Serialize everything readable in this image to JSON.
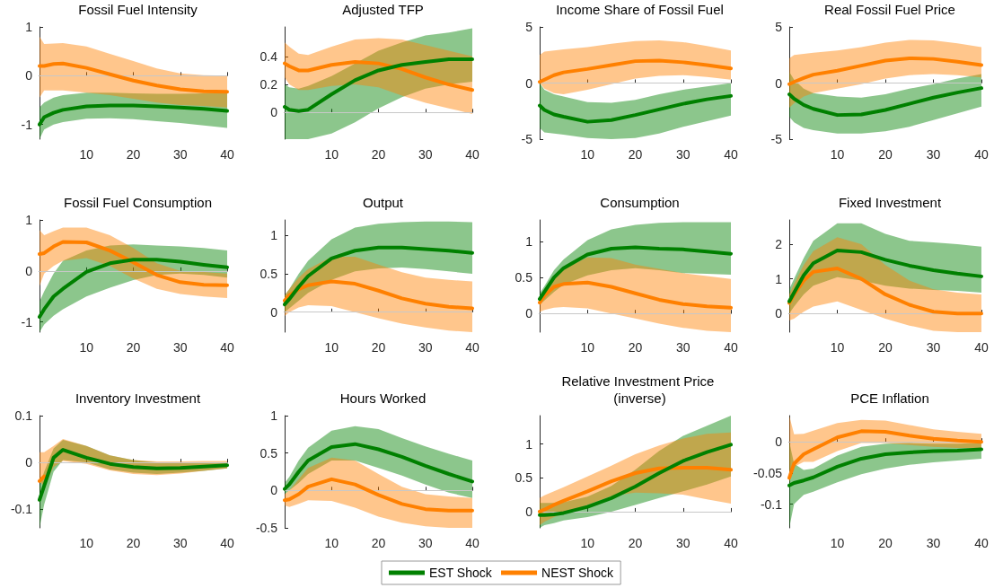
{
  "chart_data": [
    {
      "type": "line",
      "title": "Fossil Fuel Intensity",
      "x": [
        0,
        1,
        3,
        5,
        10,
        15,
        20,
        25,
        30,
        35,
        40
      ],
      "xlim": [
        0,
        40
      ],
      "xticks": [
        10,
        20,
        30,
        40
      ],
      "ylim": [
        -1.3,
        1
      ],
      "yticks": [
        -1,
        0,
        1
      ],
      "ref_lines": [
        {
          "axis": "y",
          "value": 0,
          "color": "#c8c8c8"
        }
      ],
      "series": [
        {
          "color": "#008000",
          "values": [
            -1.0,
            -0.85,
            -0.76,
            -0.7,
            -0.63,
            -0.61,
            -0.61,
            -0.63,
            -0.65,
            -0.68,
            -0.72
          ],
          "lower": [
            -1.3,
            -1.1,
            -1.0,
            -0.95,
            -0.88,
            -0.87,
            -0.89,
            -0.93,
            -0.97,
            -1.02,
            -1.07
          ],
          "upper": [
            -0.65,
            -0.55,
            -0.45,
            -0.4,
            -0.35,
            -0.35,
            -0.36,
            -0.37,
            -0.37,
            -0.36,
            -0.35
          ]
        },
        {
          "color": "#ff8000",
          "values": [
            0.2,
            0.2,
            0.24,
            0.25,
            0.16,
            0.03,
            -0.1,
            -0.2,
            -0.28,
            -0.32,
            -0.33
          ],
          "lower": [
            -0.45,
            -0.3,
            -0.3,
            -0.3,
            -0.35,
            -0.4,
            -0.47,
            -0.55,
            -0.6,
            -0.62,
            -0.65
          ],
          "upper": [
            0.8,
            0.65,
            0.66,
            0.67,
            0.6,
            0.45,
            0.3,
            0.15,
            0.05,
            0.01,
            0.0
          ]
        }
      ]
    },
    {
      "type": "line",
      "title": "Adjusted TFP",
      "x": [
        0,
        1,
        3,
        5,
        10,
        15,
        20,
        25,
        30,
        35,
        40
      ],
      "xlim": [
        0,
        40
      ],
      "xticks": [
        10,
        20,
        30,
        40
      ],
      "ylim": [
        -0.19,
        0.61
      ],
      "yticks": [
        0,
        0.2,
        0.4
      ],
      "ref_lines": [
        {
          "axis": "y",
          "value": 0,
          "color": "#c8c8c8"
        }
      ],
      "series": [
        {
          "color": "#008000",
          "values": [
            0.04,
            0.02,
            0.01,
            0.02,
            0.13,
            0.23,
            0.3,
            0.34,
            0.36,
            0.38,
            0.38
          ],
          "lower": [
            -0.19,
            -0.19,
            -0.19,
            -0.19,
            -0.15,
            -0.07,
            0.03,
            0.11,
            0.17,
            0.2,
            0.22
          ],
          "upper": [
            0.2,
            0.18,
            0.17,
            0.19,
            0.26,
            0.35,
            0.44,
            0.5,
            0.55,
            0.57,
            0.6
          ]
        },
        {
          "color": "#ff8000",
          "values": [
            0.35,
            0.33,
            0.3,
            0.3,
            0.34,
            0.36,
            0.35,
            0.31,
            0.25,
            0.2,
            0.16
          ],
          "lower": [
            0.25,
            0.2,
            0.16,
            0.16,
            0.19,
            0.2,
            0.18,
            0.12,
            0.07,
            0.03,
            -0.01
          ],
          "upper": [
            0.5,
            0.47,
            0.42,
            0.41,
            0.47,
            0.52,
            0.53,
            0.52,
            0.48,
            0.44,
            0.4
          ]
        }
      ]
    },
    {
      "type": "line",
      "title": "Income Share of Fossil Fuel",
      "x": [
        0,
        1,
        3,
        5,
        10,
        15,
        20,
        25,
        30,
        35,
        40
      ],
      "xlim": [
        0,
        40
      ],
      "xticks": [
        10,
        20,
        30,
        40
      ],
      "ylim": [
        -5,
        5
      ],
      "yticks": [
        -5,
        0,
        5
      ],
      "ref_lines": [
        {
          "axis": "y",
          "value": 0,
          "color": "#c8c8c8"
        }
      ],
      "series": [
        {
          "color": "#008000",
          "values": [
            -2.0,
            -2.4,
            -2.8,
            -3.0,
            -3.45,
            -3.3,
            -2.85,
            -2.35,
            -1.85,
            -1.45,
            -1.15
          ],
          "lower": [
            -4.0,
            -4.4,
            -4.5,
            -4.6,
            -4.9,
            -5.0,
            -4.9,
            -4.5,
            -3.9,
            -3.4,
            -2.9
          ],
          "upper": [
            0.0,
            -0.6,
            -1.0,
            -1.2,
            -1.7,
            -1.75,
            -1.5,
            -1.0,
            -0.6,
            -0.3,
            0.0
          ]
        },
        {
          "color": "#ff8000",
          "values": [
            0.1,
            0.3,
            0.7,
            0.95,
            1.25,
            1.6,
            1.95,
            2.0,
            1.85,
            1.6,
            1.3
          ],
          "lower": [
            0.0,
            -0.5,
            -0.9,
            -1.0,
            -0.6,
            -0.1,
            0.4,
            0.65,
            0.7,
            0.55,
            0.3
          ],
          "upper": [
            2.5,
            2.8,
            2.9,
            3.0,
            3.2,
            3.5,
            3.75,
            3.8,
            3.65,
            3.3,
            2.9
          ]
        }
      ]
    },
    {
      "type": "line",
      "title": "Real Fossil Fuel Price",
      "x": [
        0,
        1,
        3,
        5,
        10,
        15,
        20,
        25,
        30,
        35,
        40
      ],
      "xlim": [
        0,
        40
      ],
      "xticks": [
        10,
        20,
        30,
        40
      ],
      "ylim": [
        -5,
        5
      ],
      "yticks": [
        -5,
        0,
        5
      ],
      "ref_lines": [
        {
          "axis": "y",
          "value": 0,
          "color": "#c8c8c8"
        }
      ],
      "series": [
        {
          "color": "#008000",
          "values": [
            -1.0,
            -1.4,
            -1.95,
            -2.3,
            -2.85,
            -2.8,
            -2.4,
            -1.85,
            -1.3,
            -0.85,
            -0.45
          ],
          "lower": [
            -3.0,
            -3.5,
            -4.0,
            -4.2,
            -4.5,
            -4.5,
            -4.3,
            -3.9,
            -3.3,
            -2.7,
            -2.1
          ],
          "upper": [
            1.0,
            0.3,
            -0.5,
            -0.9,
            -1.2,
            -1.3,
            -1.0,
            -0.5,
            -0.1,
            0.4,
            0.8
          ]
        },
        {
          "color": "#ff8000",
          "values": [
            -0.1,
            0.1,
            0.45,
            0.75,
            1.1,
            1.55,
            2.0,
            2.2,
            2.15,
            1.9,
            1.6
          ],
          "lower": [
            -2.2,
            -1.8,
            -1.2,
            -0.9,
            -0.5,
            -0.1,
            0.4,
            0.7,
            0.8,
            0.7,
            0.5
          ],
          "upper": [
            2.2,
            2.5,
            2.6,
            2.7,
            2.9,
            3.2,
            3.6,
            3.85,
            3.8,
            3.55,
            3.2
          ]
        }
      ]
    },
    {
      "type": "line",
      "title": "Fossil Fuel Consumption",
      "x": [
        0,
        1,
        3,
        5,
        10,
        15,
        20,
        25,
        30,
        35,
        40
      ],
      "xlim": [
        0,
        40
      ],
      "xticks": [
        10,
        20,
        30,
        40
      ],
      "ylim": [
        -1.2,
        1
      ],
      "yticks": [
        -1,
        0,
        1
      ],
      "ref_lines": [
        {
          "axis": "y",
          "value": 0,
          "color": "#c8c8c8"
        }
      ],
      "series": [
        {
          "color": "#008000",
          "values": [
            -0.9,
            -0.75,
            -0.5,
            -0.35,
            -0.02,
            0.15,
            0.22,
            0.22,
            0.18,
            0.12,
            0.07
          ],
          "lower": [
            -1.2,
            -1.05,
            -0.88,
            -0.75,
            -0.5,
            -0.33,
            -0.18,
            -0.08,
            -0.05,
            -0.08,
            -0.13
          ],
          "upper": [
            -0.6,
            -0.4,
            -0.05,
            0.2,
            0.4,
            0.5,
            0.52,
            0.5,
            0.48,
            0.45,
            0.4
          ]
        },
        {
          "color": "#ff8000",
          "values": [
            0.33,
            0.35,
            0.48,
            0.57,
            0.56,
            0.4,
            0.17,
            -0.08,
            -0.22,
            -0.27,
            -0.28
          ],
          "lower": [
            -0.3,
            -0.05,
            0.1,
            0.2,
            0.25,
            0.1,
            -0.15,
            -0.35,
            -0.45,
            -0.5,
            -0.53
          ],
          "upper": [
            0.8,
            0.7,
            0.78,
            0.85,
            0.85,
            0.7,
            0.45,
            0.15,
            0.0,
            -0.02,
            -0.05
          ]
        }
      ]
    },
    {
      "type": "line",
      "title": "Output",
      "x": [
        0,
        1,
        3,
        5,
        10,
        15,
        20,
        25,
        30,
        35,
        40
      ],
      "xlim": [
        0,
        40
      ],
      "xticks": [
        10,
        20,
        30,
        40
      ],
      "ylim": [
        -0.26,
        1.2
      ],
      "yticks": [
        0,
        0.5,
        1
      ],
      "ref_lines": [
        {
          "axis": "y",
          "value": 0,
          "color": "#c8c8c8"
        }
      ],
      "series": [
        {
          "color": "#008000",
          "values": [
            0.1,
            0.17,
            0.33,
            0.47,
            0.7,
            0.8,
            0.84,
            0.84,
            0.82,
            0.8,
            0.77
          ],
          "lower": [
            0.0,
            0.05,
            0.15,
            0.25,
            0.42,
            0.53,
            0.57,
            0.58,
            0.56,
            0.53,
            0.5
          ],
          "upper": [
            0.22,
            0.3,
            0.5,
            0.67,
            0.95,
            1.1,
            1.15,
            1.17,
            1.18,
            1.18,
            1.17
          ]
        },
        {
          "color": "#ff8000",
          "values": [
            0.15,
            0.22,
            0.3,
            0.35,
            0.4,
            0.37,
            0.28,
            0.18,
            0.11,
            0.07,
            0.05
          ],
          "lower": [
            -0.05,
            0.0,
            0.06,
            0.09,
            0.08,
            0.0,
            -0.08,
            -0.15,
            -0.2,
            -0.24,
            -0.26
          ],
          "upper": [
            0.22,
            0.3,
            0.45,
            0.56,
            0.72,
            0.72,
            0.62,
            0.52,
            0.45,
            0.42,
            0.4
          ]
        }
      ]
    },
    {
      "type": "line",
      "title": "Consumption",
      "x": [
        0,
        1,
        3,
        5,
        10,
        15,
        20,
        25,
        30,
        35,
        40
      ],
      "xlim": [
        0,
        40
      ],
      "xticks": [
        10,
        20,
        30,
        40
      ],
      "ylim": [
        -0.26,
        1.3
      ],
      "yticks": [
        0,
        0.5,
        1
      ],
      "ref_lines": [
        {
          "axis": "y",
          "value": 0,
          "color": "#c8c8c8"
        }
      ],
      "series": [
        {
          "color": "#008000",
          "values": [
            0.2,
            0.3,
            0.5,
            0.63,
            0.82,
            0.9,
            0.92,
            0.9,
            0.89,
            0.86,
            0.83
          ],
          "lower": [
            0.12,
            0.18,
            0.3,
            0.4,
            0.53,
            0.6,
            0.63,
            0.6,
            0.56,
            0.55,
            0.54
          ],
          "upper": [
            0.28,
            0.38,
            0.6,
            0.75,
            1.02,
            1.17,
            1.23,
            1.26,
            1.27,
            1.27,
            1.27
          ]
        },
        {
          "color": "#ff8000",
          "values": [
            0.15,
            0.25,
            0.37,
            0.41,
            0.43,
            0.37,
            0.28,
            0.19,
            0.13,
            0.1,
            0.08
          ],
          "lower": [
            0.02,
            0.05,
            0.08,
            0.09,
            0.07,
            0.0,
            -0.07,
            -0.14,
            -0.2,
            -0.24,
            -0.26
          ],
          "upper": [
            0.22,
            0.32,
            0.5,
            0.62,
            0.78,
            0.77,
            0.68,
            0.62,
            0.56,
            0.52,
            0.48
          ]
        }
      ]
    },
    {
      "type": "line",
      "title": "Fixed Investment",
      "x": [
        0,
        1,
        3,
        5,
        10,
        15,
        20,
        25,
        30,
        35,
        40
      ],
      "xlim": [
        0,
        40
      ],
      "xticks": [
        10,
        20,
        30,
        40
      ],
      "ylim": [
        -0.54,
        2.7
      ],
      "yticks": [
        0,
        1,
        2
      ],
      "ref_lines": [
        {
          "axis": "y",
          "value": 0,
          "color": "#c8c8c8"
        }
      ],
      "series": [
        {
          "color": "#008000",
          "values": [
            0.35,
            0.6,
            1.1,
            1.45,
            1.82,
            1.77,
            1.55,
            1.38,
            1.25,
            1.15,
            1.07
          ],
          "lower": [
            0.0,
            0.2,
            0.55,
            0.8,
            1.05,
            0.95,
            0.8,
            0.72,
            0.68,
            0.65,
            0.6
          ],
          "upper": [
            0.7,
            1.0,
            1.6,
            2.1,
            2.6,
            2.6,
            2.3,
            2.1,
            2.05,
            2.0,
            1.93
          ]
        },
        {
          "color": "#ff8000",
          "values": [
            0.3,
            0.55,
            0.95,
            1.2,
            1.3,
            1.0,
            0.55,
            0.25,
            0.05,
            0.0,
            0.0
          ],
          "lower": [
            -0.2,
            -0.15,
            0.05,
            0.2,
            0.35,
            0.1,
            -0.15,
            -0.35,
            -0.5,
            -0.54,
            -0.54
          ],
          "upper": [
            0.55,
            0.85,
            1.4,
            1.8,
            2.2,
            2.0,
            1.4,
            0.95,
            0.7,
            0.6,
            0.55
          ]
        }
      ]
    },
    {
      "type": "line",
      "title": "Inventory Investment",
      "x": [
        0,
        1,
        3,
        5,
        10,
        15,
        20,
        25,
        30,
        35,
        40
      ],
      "xlim": [
        0,
        40
      ],
      "xticks": [
        10,
        20,
        30,
        40
      ],
      "ylim": [
        -0.14,
        0.1
      ],
      "yticks": [
        -0.1,
        0,
        0.1
      ],
      "ref_lines": [
        {
          "axis": "y",
          "value": 0,
          "color": "#c8c8c8"
        }
      ],
      "series": [
        {
          "color": "#008000",
          "values": [
            -0.08,
            -0.05,
            0.01,
            0.027,
            0.01,
            -0.003,
            -0.01,
            -0.013,
            -0.012,
            -0.009,
            -0.006
          ],
          "lower": [
            -0.14,
            -0.09,
            -0.02,
            0.005,
            0.0,
            -0.015,
            -0.022,
            -0.025,
            -0.022,
            -0.018,
            -0.013
          ],
          "upper": [
            -0.05,
            -0.02,
            0.03,
            0.048,
            0.035,
            0.015,
            0.005,
            0.0,
            0.0,
            0.0,
            0.0
          ]
        },
        {
          "color": "#ff8000",
          "values": [
            -0.04,
            -0.03,
            null,
            null,
            null,
            null,
            null,
            null,
            null,
            null,
            null
          ],
          "lower": [
            -0.04,
            -0.05,
            -0.01,
            0.003,
            -0.003,
            -0.017,
            -0.025,
            -0.027,
            -0.024,
            -0.018,
            -0.013
          ],
          "upper": [
            0.022,
            0.022,
            0.035,
            0.05,
            0.035,
            0.015,
            0.005,
            0.002,
            0.002,
            0.003,
            0.003
          ]
        }
      ]
    },
    {
      "type": "line",
      "title": "Hours Worked",
      "x": [
        0,
        1,
        3,
        5,
        10,
        15,
        20,
        25,
        30,
        35,
        40
      ],
      "xlim": [
        0,
        40
      ],
      "xticks": [
        10,
        20,
        30,
        40
      ],
      "ylim": [
        -0.5,
        1
      ],
      "yticks": [
        -0.5,
        0,
        0.5,
        1
      ],
      "ref_lines": [
        {
          "axis": "y",
          "value": 0,
          "color": "#c8c8c8"
        }
      ],
      "series": [
        {
          "color": "#008000",
          "values": [
            0.02,
            0.08,
            0.25,
            0.4,
            0.58,
            0.62,
            0.55,
            0.45,
            0.33,
            0.22,
            0.12
          ],
          "lower": [
            -0.05,
            0.0,
            0.1,
            0.22,
            0.4,
            0.4,
            0.3,
            0.2,
            0.08,
            -0.03,
            -0.1
          ],
          "upper": [
            0.1,
            0.18,
            0.4,
            0.57,
            0.8,
            0.86,
            0.82,
            0.7,
            0.59,
            0.49,
            0.4
          ]
        },
        {
          "color": "#ff8000",
          "values": [
            -0.13,
            -0.12,
            -0.05,
            0.05,
            0.15,
            0.08,
            -0.06,
            -0.18,
            -0.25,
            -0.27,
            -0.27
          ],
          "lower": [
            -0.2,
            -0.22,
            -0.18,
            -0.13,
            -0.14,
            -0.23,
            -0.35,
            -0.43,
            -0.48,
            -0.5,
            -0.5
          ],
          "upper": [
            -0.05,
            0.0,
            0.15,
            0.3,
            0.44,
            0.4,
            0.22,
            0.05,
            -0.05,
            -0.08,
            -0.1
          ]
        }
      ]
    },
    {
      "type": "line",
      "title": "Relative Investment Price (inverse)",
      "x": [
        0,
        1,
        3,
        5,
        10,
        15,
        20,
        25,
        30,
        35,
        40
      ],
      "xlim": [
        0,
        40
      ],
      "xticks": [
        10,
        20,
        30,
        40
      ],
      "ylim": [
        -0.24,
        1.42
      ],
      "yticks": [
        0,
        0.5,
        1
      ],
      "ref_lines": [
        {
          "axis": "y",
          "value": 0,
          "color": "#c8c8c8"
        }
      ],
      "legend": "bottom",
      "series": [
        {
          "name": "EST Shock",
          "color": "#008000",
          "values": [
            -0.05,
            -0.05,
            -0.04,
            -0.02,
            0.07,
            0.2,
            0.37,
            0.57,
            0.75,
            0.88,
            0.99
          ],
          "lower": [
            -0.24,
            -0.2,
            -0.17,
            -0.13,
            -0.08,
            0.0,
            0.1,
            0.2,
            0.3,
            0.4,
            0.52
          ],
          "upper": [
            0.13,
            0.13,
            0.13,
            0.14,
            0.22,
            0.38,
            0.62,
            0.9,
            1.12,
            1.27,
            1.42
          ]
        },
        {
          "name": "NEST Shock",
          "color": "#ff8000",
          "values": [
            0.0,
            0.03,
            0.1,
            0.16,
            0.3,
            0.45,
            0.57,
            0.64,
            0.65,
            0.65,
            0.62
          ],
          "lower": [
            -0.2,
            -0.15,
            -0.08,
            -0.02,
            0.1,
            0.23,
            0.28,
            0.27,
            0.25,
            0.18,
            0.12
          ],
          "upper": [
            0.2,
            0.24,
            0.3,
            0.36,
            0.52,
            0.68,
            0.85,
            0.98,
            1.08,
            1.15,
            1.17
          ]
        }
      ]
    },
    {
      "type": "line",
      "title": "PCE Inflation",
      "x": [
        0,
        1,
        3,
        5,
        10,
        15,
        20,
        25,
        30,
        35,
        40
      ],
      "xlim": [
        0,
        40
      ],
      "xticks": [
        10,
        20,
        30,
        40
      ],
      "ylim": [
        -0.138,
        0.042
      ],
      "yticks": [
        -0.1,
        -0.05,
        0
      ],
      "ref_lines": [
        {
          "axis": "y",
          "value": 0,
          "color": "#c8c8c8"
        }
      ],
      "series": [
        {
          "color": "#008000",
          "values": [
            -0.07,
            -0.066,
            -0.062,
            -0.057,
            -0.04,
            -0.027,
            -0.02,
            -0.017,
            -0.015,
            -0.014,
            -0.012
          ],
          "lower": [
            -0.138,
            -0.1,
            -0.085,
            -0.08,
            -0.065,
            -0.052,
            -0.043,
            -0.037,
            -0.033,
            -0.03,
            -0.027
          ],
          "upper": [
            0.0,
            -0.035,
            -0.045,
            -0.043,
            -0.022,
            -0.008,
            -0.003,
            -0.002,
            -0.003,
            -0.003,
            -0.002
          ]
        },
        {
          "color": "#ff8000",
          "values": [
            -0.058,
            -0.035,
            -0.02,
            -0.012,
            0.007,
            0.017,
            0.016,
            0.01,
            0.005,
            0.002,
            0.0
          ],
          "lower": [
            -0.065,
            -0.04,
            -0.032,
            -0.032,
            -0.015,
            -0.002,
            -0.002,
            -0.005,
            -0.008,
            -0.01,
            -0.01
          ],
          "upper": [
            0.042,
            0.012,
            0.013,
            0.018,
            0.03,
            0.035,
            0.034,
            0.027,
            0.02,
            0.016,
            0.013
          ]
        }
      ]
    }
  ]
}
